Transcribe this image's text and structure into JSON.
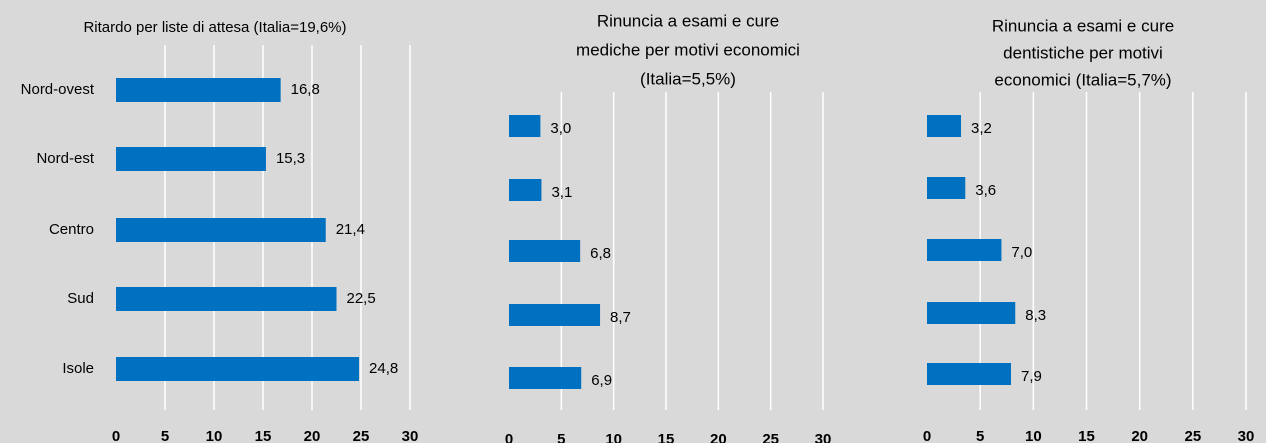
{
  "chart_data": [
    {
      "type": "bar",
      "orientation": "horizontal",
      "title": [
        "Ritardo per liste di attesa (Italia=19,6%)"
      ],
      "categories": [
        "Nord-ovest",
        "Nord-est",
        "Centro",
        "Sud",
        "Isole"
      ],
      "values": [
        16.8,
        15.3,
        21.4,
        22.5,
        24.8
      ],
      "value_labels": [
        "16,8",
        "15,3",
        "21,4",
        "22,5",
        "24,8"
      ],
      "color": "#0070c0",
      "xlim": [
        0,
        30
      ],
      "xticks": [
        0,
        5,
        10,
        15,
        20,
        25,
        30
      ],
      "grid": true
    },
    {
      "type": "bar",
      "orientation": "horizontal",
      "title": [
        "Rinuncia a esami e cure",
        "mediche per motivi economici",
        "(Italia=5,5%)"
      ],
      "categories": [
        null,
        null,
        null,
        null,
        null
      ],
      "values": [
        3.0,
        3.1,
        6.8,
        8.7,
        6.9
      ],
      "value_labels": [
        "3,0",
        "3,1",
        "6,8",
        "8,7",
        "6,9"
      ],
      "color": "#0070c0",
      "xlim": [
        0,
        30
      ],
      "xticks": [
        0,
        5,
        10,
        15,
        20,
        25,
        30
      ],
      "grid": true
    },
    {
      "type": "bar",
      "orientation": "horizontal",
      "title": [
        "Rinuncia a esami e cure",
        "dentistiche per motivi",
        "economici (Italia=5,7%)"
      ],
      "categories": [
        null,
        null,
        null,
        null,
        null
      ],
      "values": [
        3.2,
        3.6,
        7.0,
        8.3,
        7.9
      ],
      "value_labels": [
        "3,2",
        "3,6",
        "7,0",
        "8,3",
        "7,9"
      ],
      "color": "#0070c0",
      "xlim": [
        0,
        30
      ],
      "xticks": [
        0,
        5,
        10,
        15,
        20,
        25,
        30
      ],
      "grid": true
    }
  ]
}
